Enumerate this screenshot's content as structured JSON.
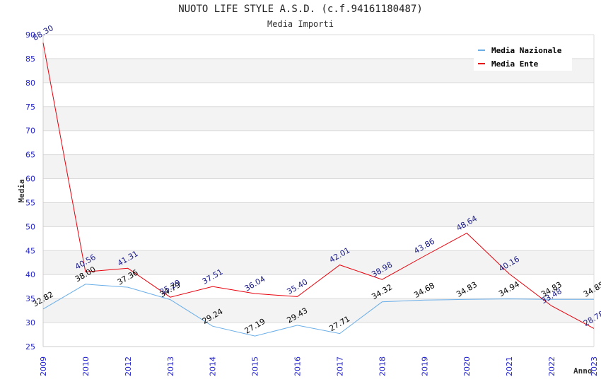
{
  "chart_data": {
    "type": "line",
    "title": "NUOTO LIFE STYLE A.S.D. (c.f.94161180487)",
    "subtitle": "Media Importi",
    "xlabel": "Anno",
    "ylabel": "Media",
    "ylim": [
      25,
      90
    ],
    "yticks": [
      "25",
      "30",
      "35",
      "40",
      "45",
      "50",
      "55",
      "60",
      "65",
      "70",
      "75",
      "80",
      "85",
      "90"
    ],
    "categories": [
      "2009",
      "2010",
      "2012",
      "2013",
      "2014",
      "2015",
      "2016",
      "2017",
      "2018",
      "2019",
      "2020",
      "2021",
      "2022",
      "2023"
    ],
    "grid": true,
    "legend_position": "top-right",
    "series": [
      {
        "name": "Media Nazionale",
        "color": "#6aaee8",
        "label_color": "#000000",
        "values": [
          32.82,
          38.0,
          37.36,
          34.79,
          29.24,
          27.19,
          29.43,
          27.71,
          34.32,
          34.68,
          34.83,
          34.94,
          34.83,
          34.85
        ],
        "labels": [
          "32.82",
          "38.00",
          "37.36",
          "34.79",
          "29.24",
          "27.19",
          "29.43",
          "27.71",
          "34.32",
          "34.68",
          "34.83",
          "34.94",
          "34.83",
          "34.85"
        ]
      },
      {
        "name": "Media Ente",
        "color": "#e8000b",
        "label_color": "#1a1a8c",
        "values": [
          88.3,
          40.56,
          41.31,
          35.29,
          37.51,
          36.04,
          35.4,
          42.01,
          38.98,
          43.86,
          48.64,
          40.16,
          33.48,
          28.78
        ],
        "labels": [
          "88.30",
          "40.56",
          "41.31",
          "35.29",
          "37.51",
          "36.04",
          "35.40",
          "42.01",
          "38.98",
          "43.86",
          "48.64",
          "40.16",
          "33.48",
          "28.78"
        ]
      }
    ]
  }
}
